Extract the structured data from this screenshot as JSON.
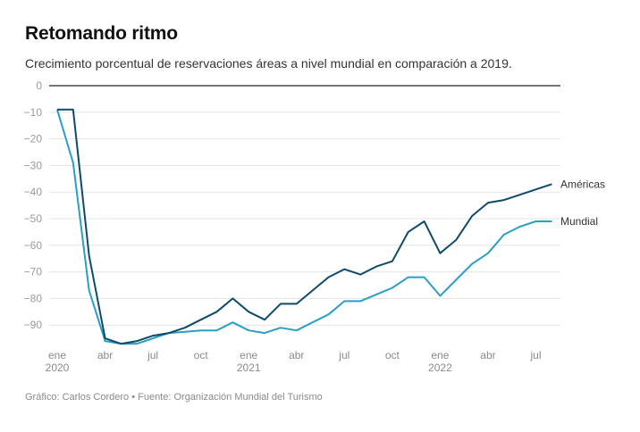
{
  "chart_data": {
    "type": "line",
    "title": "Retomando ritmo",
    "subtitle": "Crecimiento porcentual de reservaciones áreas a nivel mundial en comparación a 2019.",
    "xlabel": "",
    "ylabel": "",
    "ylim": [
      -100,
      0
    ],
    "yticks": [
      0,
      -10,
      -20,
      -30,
      -40,
      -50,
      -60,
      -70,
      -80,
      -90
    ],
    "grid": true,
    "x": [
      "2020-01",
      "2020-02",
      "2020-03",
      "2020-04",
      "2020-05",
      "2020-06",
      "2020-07",
      "2020-08",
      "2020-09",
      "2020-10",
      "2020-11",
      "2020-12",
      "2021-01",
      "2021-02",
      "2021-03",
      "2021-04",
      "2021-05",
      "2021-06",
      "2021-07",
      "2021-08",
      "2021-09",
      "2021-10",
      "2021-11",
      "2021-12",
      "2022-01",
      "2022-02",
      "2022-03",
      "2022-04",
      "2022-05",
      "2022-06",
      "2022-07",
      "2022-08"
    ],
    "xticks": [
      {
        "index": 0,
        "label": "ene",
        "year": "2020"
      },
      {
        "index": 3,
        "label": "abr",
        "year": ""
      },
      {
        "index": 6,
        "label": "jul",
        "year": ""
      },
      {
        "index": 9,
        "label": "oct",
        "year": ""
      },
      {
        "index": 12,
        "label": "ene",
        "year": "2021"
      },
      {
        "index": 15,
        "label": "abr",
        "year": ""
      },
      {
        "index": 18,
        "label": "jul",
        "year": ""
      },
      {
        "index": 21,
        "label": "oct",
        "year": ""
      },
      {
        "index": 24,
        "label": "ene",
        "year": "2022"
      },
      {
        "index": 27,
        "label": "abr",
        "year": ""
      },
      {
        "index": 30,
        "label": "jul",
        "year": ""
      }
    ],
    "series": [
      {
        "name": "Américas",
        "color": "#0f4a6a",
        "values": [
          -9,
          -9,
          -64,
          -95,
          -97,
          -96,
          -94,
          -93,
          -91,
          -88,
          -85,
          -80,
          -85,
          -88,
          -82,
          -82,
          -77,
          -72,
          -69,
          -71,
          -68,
          -66,
          -55,
          -51,
          -63,
          -58,
          -49,
          -44,
          -43,
          -41,
          -39,
          -37
        ]
      },
      {
        "name": "Mundial",
        "color": "#2a9fc2",
        "values": [
          -9,
          -29,
          -77,
          -96,
          -97,
          -97,
          -95,
          -93,
          -92.5,
          -92,
          -92,
          -89,
          -92,
          -93,
          -91,
          -92,
          -89,
          -86,
          -81,
          -81,
          -78.5,
          -76,
          -72,
          -72,
          -79,
          -73,
          -67,
          -63,
          -56,
          -53,
          -51,
          -51
        ]
      }
    ],
    "legend": "inline-right"
  },
  "footer": "Gráfico: Carlos Cordero • Fuente: Organización Mundial del Turismo"
}
